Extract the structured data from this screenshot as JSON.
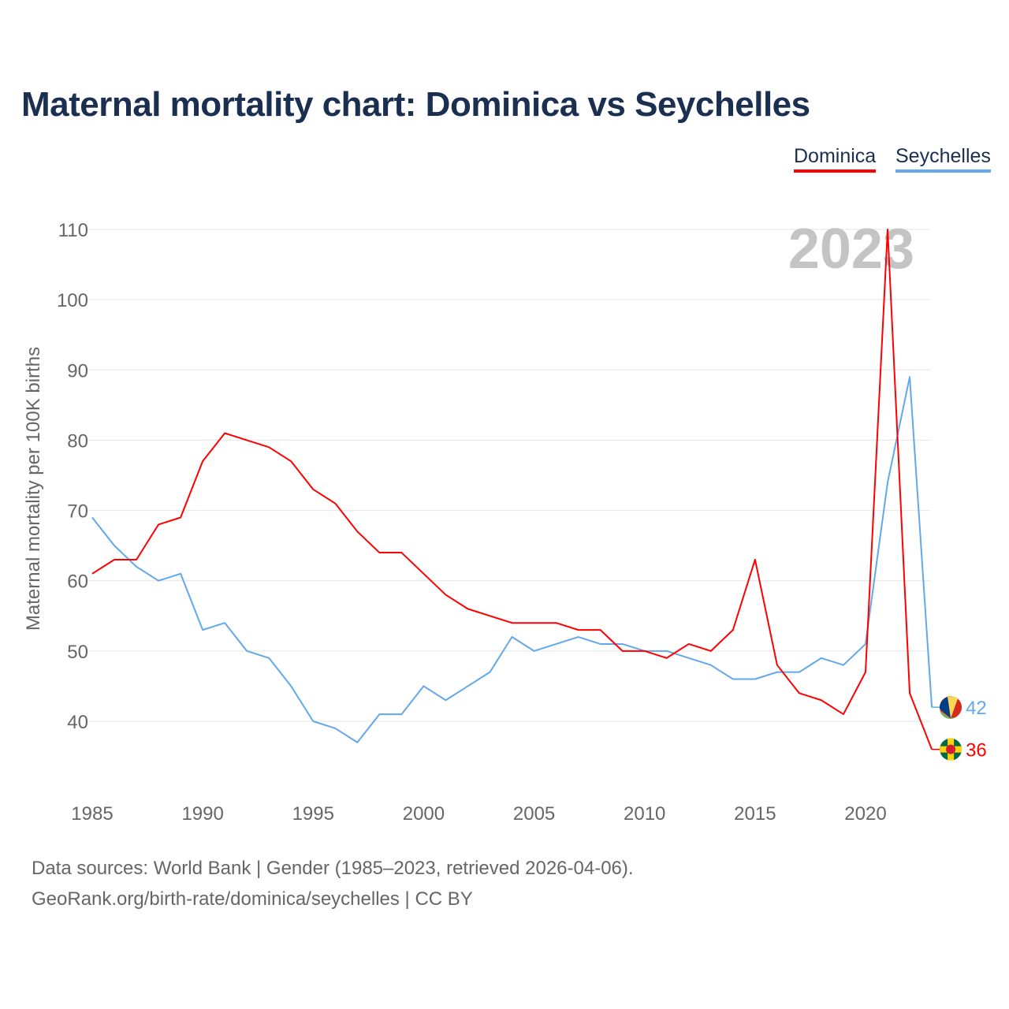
{
  "chart_data": {
    "type": "line",
    "title": "Maternal mortality chart: Dominica vs Seychelles",
    "xlabel": "",
    "ylabel": "Maternal mortality per 100K births",
    "xlim": [
      1985,
      2023
    ],
    "ylim": [
      30,
      112
    ],
    "xticks": [
      1985,
      1990,
      1995,
      2000,
      2005,
      2010,
      2015,
      2020
    ],
    "yticks": [
      40,
      50,
      60,
      70,
      80,
      90,
      100,
      110
    ],
    "grid": true,
    "year_watermark": "2023",
    "x": [
      1985,
      1986,
      1987,
      1988,
      1989,
      1990,
      1991,
      1992,
      1993,
      1994,
      1995,
      1996,
      1997,
      1998,
      1999,
      2000,
      2001,
      2002,
      2003,
      2004,
      2005,
      2006,
      2007,
      2008,
      2009,
      2010,
      2011,
      2012,
      2013,
      2014,
      2015,
      2016,
      2017,
      2018,
      2019,
      2020,
      2021,
      2022,
      2023
    ],
    "series": [
      {
        "name": "Dominica",
        "color": "#ff0000",
        "end_label": "36",
        "values": [
          61,
          63,
          63,
          68,
          69,
          77,
          81,
          80,
          79,
          77,
          73,
          71,
          67,
          64,
          64,
          61,
          58,
          56,
          55,
          54,
          54,
          54,
          53,
          53,
          50,
          50,
          49,
          51,
          50,
          53,
          63,
          48,
          44,
          43,
          41,
          47,
          110,
          44,
          36
        ]
      },
      {
        "name": "Seychelles",
        "color": "#62a8ea",
        "end_label": "42",
        "values": [
          69,
          65,
          62,
          60,
          61,
          53,
          54,
          50,
          49,
          45,
          40,
          39,
          37,
          41,
          41,
          45,
          43,
          45,
          47,
          52,
          50,
          51,
          52,
          51,
          51,
          50,
          50,
          49,
          48,
          46,
          46,
          47,
          47,
          49,
          48,
          51,
          74,
          89,
          42
        ]
      }
    ],
    "legend_placement": "top-right"
  },
  "footer": {
    "line1": "Data sources: World Bank | Gender (1985–2023, retrieved 2026-04-06).",
    "line2": "GeoRank.org/birth-rate/dominica/seychelles | CC BY"
  }
}
